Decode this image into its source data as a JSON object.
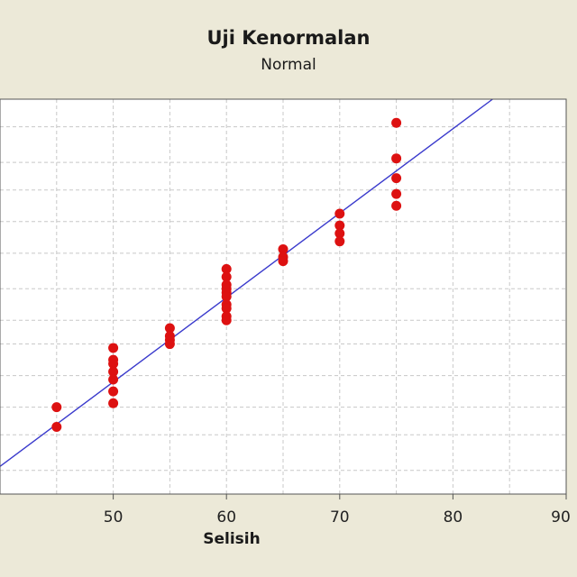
{
  "chart_data": {
    "type": "scatter",
    "title": "Uji Kenormalan",
    "subtitle": "Normal",
    "xlabel": "Selisih",
    "xlim": [
      40,
      90
    ],
    "x_ticks": [
      50,
      60,
      70,
      80,
      90
    ],
    "x_tick_labels": [
      "50",
      "60",
      "70",
      "80",
      "90"
    ],
    "grid": true,
    "fit_line": {
      "x": [
        40,
        83.5
      ],
      "y_fraction": [
        0.07,
        1.0
      ],
      "color": "#3a3acc"
    },
    "marker_color": "#dd1111",
    "points": [
      {
        "x": 45,
        "y": [
          0.22,
          0.17
        ]
      },
      {
        "x": 50,
        "y": [
          0.37,
          0.34,
          0.33,
          0.31,
          0.29,
          0.26,
          0.23
        ]
      },
      {
        "x": 55,
        "y": [
          0.42,
          0.4,
          0.39,
          0.38
        ]
      },
      {
        "x": 60,
        "y": [
          0.57,
          0.55,
          0.53,
          0.52,
          0.51,
          0.5,
          0.48,
          0.47,
          0.45,
          0.44
        ]
      },
      {
        "x": 65,
        "y": [
          0.62,
          0.6,
          0.59
        ]
      },
      {
        "x": 70,
        "y": [
          0.71,
          0.68,
          0.66,
          0.64
        ]
      },
      {
        "x": 75,
        "y": [
          0.94,
          0.85,
          0.8,
          0.76,
          0.73
        ]
      }
    ]
  }
}
